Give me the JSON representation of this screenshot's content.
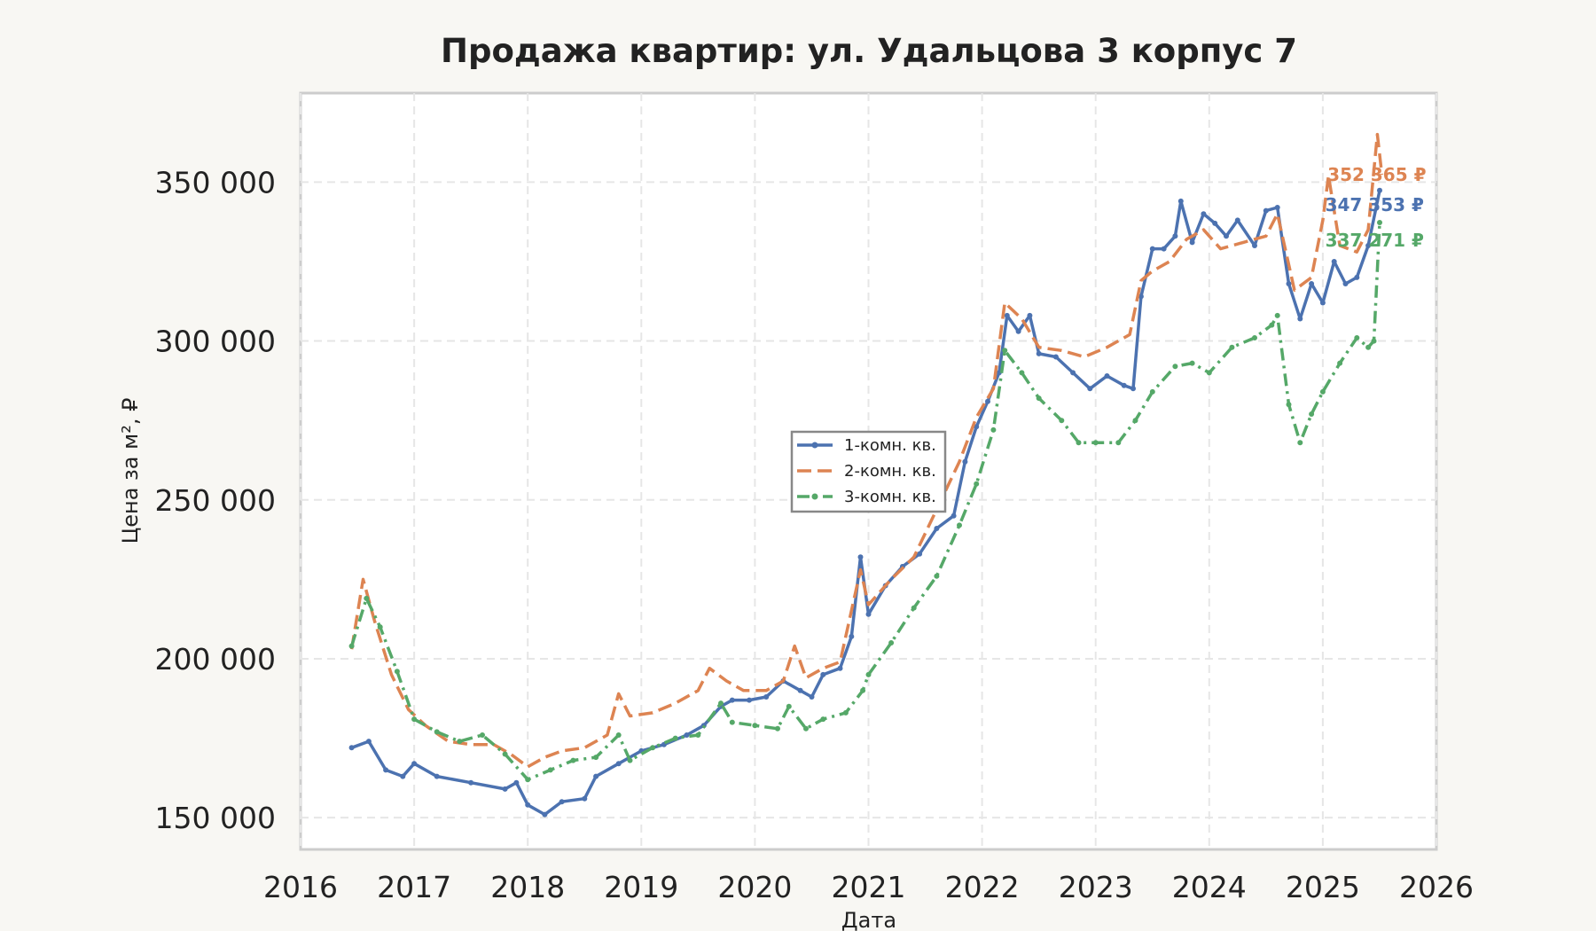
{
  "chart_data": {
    "type": "line",
    "title": "Продажа квартир: ул. Удальцова 3 корпус 7",
    "xlabel": "Дата",
    "ylabel": "Цена за м², ₽",
    "xlim": [
      2016,
      2026
    ],
    "ylim": [
      140000,
      378000
    ],
    "x_ticks": [
      "2016",
      "2017",
      "2018",
      "2019",
      "2020",
      "2021",
      "2022",
      "2023",
      "2024",
      "2025",
      "2026"
    ],
    "y_ticks": [
      {
        "value": 150000,
        "label": "150 000"
      },
      {
        "value": 200000,
        "label": "200 000"
      },
      {
        "value": 250000,
        "label": "250 000"
      },
      {
        "value": 300000,
        "label": "300 000"
      },
      {
        "value": 350000,
        "label": "350 000"
      }
    ],
    "grid": true,
    "legend_position": "center",
    "series": [
      {
        "name": "1-комн. кв.",
        "color": "#4c72b0",
        "line_style": "solid",
        "marker": "x",
        "end_label": "347 353 ₽",
        "points": [
          [
            2016.45,
            172000
          ],
          [
            2016.6,
            174000
          ],
          [
            2016.75,
            165000
          ],
          [
            2016.9,
            163000
          ],
          [
            2017.0,
            167000
          ],
          [
            2017.2,
            163000
          ],
          [
            2017.5,
            161000
          ],
          [
            2017.8,
            159000
          ],
          [
            2017.9,
            161000
          ],
          [
            2018.0,
            154000
          ],
          [
            2018.15,
            151000
          ],
          [
            2018.3,
            155000
          ],
          [
            2018.5,
            156000
          ],
          [
            2018.6,
            163000
          ],
          [
            2018.8,
            167000
          ],
          [
            2019.0,
            171000
          ],
          [
            2019.2,
            173000
          ],
          [
            2019.4,
            176000
          ],
          [
            2019.55,
            179000
          ],
          [
            2019.7,
            185000
          ],
          [
            2019.8,
            187000
          ],
          [
            2019.95,
            187000
          ],
          [
            2020.1,
            188000
          ],
          [
            2020.25,
            193000
          ],
          [
            2020.4,
            190000
          ],
          [
            2020.5,
            188000
          ],
          [
            2020.6,
            195000
          ],
          [
            2020.75,
            197000
          ],
          [
            2020.85,
            207000
          ],
          [
            2020.93,
            232000
          ],
          [
            2021.0,
            214000
          ],
          [
            2021.15,
            223000
          ],
          [
            2021.3,
            229000
          ],
          [
            2021.45,
            233000
          ],
          [
            2021.6,
            241000
          ],
          [
            2021.75,
            245000
          ],
          [
            2021.85,
            262000
          ],
          [
            2021.95,
            273000
          ],
          [
            2022.05,
            281000
          ],
          [
            2022.15,
            290000
          ],
          [
            2022.22,
            308000
          ],
          [
            2022.32,
            303000
          ],
          [
            2022.42,
            308000
          ],
          [
            2022.5,
            296000
          ],
          [
            2022.65,
            295000
          ],
          [
            2022.8,
            290000
          ],
          [
            2022.95,
            285000
          ],
          [
            2023.1,
            289000
          ],
          [
            2023.25,
            286000
          ],
          [
            2023.33,
            285000
          ],
          [
            2023.4,
            314000
          ],
          [
            2023.5,
            329000
          ],
          [
            2023.6,
            329000
          ],
          [
            2023.7,
            333000
          ],
          [
            2023.75,
            344000
          ],
          [
            2023.85,
            331000
          ],
          [
            2023.95,
            340000
          ],
          [
            2024.05,
            337000
          ],
          [
            2024.15,
            333000
          ],
          [
            2024.25,
            338000
          ],
          [
            2024.4,
            330000
          ],
          [
            2024.5,
            341000
          ],
          [
            2024.6,
            342000
          ],
          [
            2024.7,
            318000
          ],
          [
            2024.8,
            307000
          ],
          [
            2024.9,
            318000
          ],
          [
            2025.0,
            312000
          ],
          [
            2025.1,
            325000
          ],
          [
            2025.2,
            318000
          ],
          [
            2025.3,
            320000
          ],
          [
            2025.4,
            330000
          ],
          [
            2025.5,
            347353
          ]
        ]
      },
      {
        "name": "2-комн. кв.",
        "color": "#dd8452",
        "line_style": "dashed",
        "marker": "none",
        "end_label": "352 365 ₽",
        "points": [
          [
            2016.45,
            203000
          ],
          [
            2016.55,
            225000
          ],
          [
            2016.65,
            212000
          ],
          [
            2016.8,
            195000
          ],
          [
            2016.95,
            184000
          ],
          [
            2017.1,
            179000
          ],
          [
            2017.3,
            174000
          ],
          [
            2017.5,
            173000
          ],
          [
            2017.7,
            173000
          ],
          [
            2017.85,
            170000
          ],
          [
            2018.0,
            166000
          ],
          [
            2018.15,
            169000
          ],
          [
            2018.3,
            171000
          ],
          [
            2018.5,
            172000
          ],
          [
            2018.7,
            176000
          ],
          [
            2018.8,
            189000
          ],
          [
            2018.9,
            182000
          ],
          [
            2019.1,
            183000
          ],
          [
            2019.3,
            186000
          ],
          [
            2019.5,
            190000
          ],
          [
            2019.6,
            197000
          ],
          [
            2019.75,
            193000
          ],
          [
            2019.9,
            190000
          ],
          [
            2020.1,
            190000
          ],
          [
            2020.25,
            193000
          ],
          [
            2020.35,
            204000
          ],
          [
            2020.45,
            194000
          ],
          [
            2020.6,
            197000
          ],
          [
            2020.75,
            199000
          ],
          [
            2020.93,
            228000
          ],
          [
            2021.0,
            217000
          ],
          [
            2021.2,
            225000
          ],
          [
            2021.4,
            232000
          ],
          [
            2021.6,
            247000
          ],
          [
            2021.8,
            262000
          ],
          [
            2021.95,
            276000
          ],
          [
            2022.1,
            285000
          ],
          [
            2022.2,
            312000
          ],
          [
            2022.35,
            307000
          ],
          [
            2022.5,
            298000
          ],
          [
            2022.7,
            297000
          ],
          [
            2022.9,
            295000
          ],
          [
            2023.1,
            298000
          ],
          [
            2023.3,
            302000
          ],
          [
            2023.4,
            319000
          ],
          [
            2023.5,
            322000
          ],
          [
            2023.65,
            325000
          ],
          [
            2023.8,
            332000
          ],
          [
            2023.95,
            335000
          ],
          [
            2024.1,
            329000
          ],
          [
            2024.3,
            331000
          ],
          [
            2024.5,
            333000
          ],
          [
            2024.6,
            340000
          ],
          [
            2024.75,
            316000
          ],
          [
            2024.9,
            320000
          ],
          [
            2025.0,
            338000
          ],
          [
            2025.05,
            352000
          ],
          [
            2025.15,
            330000
          ],
          [
            2025.3,
            328000
          ],
          [
            2025.4,
            335000
          ],
          [
            2025.48,
            365000
          ],
          [
            2025.52,
            352365
          ]
        ]
      },
      {
        "name": "3-комн. кв.",
        "color": "#55a868",
        "line_style": "dashdot",
        "marker": "triangle",
        "end_label": "337 271 ₽",
        "points": [
          [
            2016.45,
            204000
          ],
          [
            2016.58,
            219000
          ],
          [
            2016.7,
            210000
          ],
          [
            2016.85,
            196000
          ],
          [
            2017.0,
            181000
          ],
          [
            2017.2,
            177000
          ],
          [
            2017.4,
            174000
          ],
          [
            2017.6,
            176000
          ],
          [
            2017.8,
            170000
          ],
          [
            2018.0,
            162000
          ],
          [
            2018.2,
            165000
          ],
          [
            2018.4,
            168000
          ],
          [
            2018.6,
            169000
          ],
          [
            2018.8,
            176000
          ],
          [
            2018.9,
            168000
          ],
          [
            2019.1,
            172000
          ],
          [
            2019.3,
            175000
          ],
          [
            2019.5,
            176000
          ],
          [
            2019.7,
            186000
          ],
          [
            2019.8,
            180000
          ],
          [
            2020.0,
            179000
          ],
          [
            2020.2,
            178000
          ],
          [
            2020.3,
            185000
          ],
          [
            2020.45,
            178000
          ],
          [
            2020.6,
            181000
          ],
          [
            2020.8,
            183000
          ],
          [
            2020.95,
            190000
          ],
          [
            2021.0,
            195000
          ],
          [
            2021.2,
            205000
          ],
          [
            2021.4,
            216000
          ],
          [
            2021.6,
            226000
          ],
          [
            2021.8,
            242000
          ],
          [
            2021.95,
            255000
          ],
          [
            2022.1,
            272000
          ],
          [
            2022.2,
            297000
          ],
          [
            2022.35,
            290000
          ],
          [
            2022.5,
            282000
          ],
          [
            2022.7,
            275000
          ],
          [
            2022.85,
            268000
          ],
          [
            2023.0,
            268000
          ],
          [
            2023.2,
            268000
          ],
          [
            2023.35,
            275000
          ],
          [
            2023.5,
            284000
          ],
          [
            2023.7,
            292000
          ],
          [
            2023.85,
            293000
          ],
          [
            2024.0,
            290000
          ],
          [
            2024.2,
            298000
          ],
          [
            2024.4,
            301000
          ],
          [
            2024.55,
            305000
          ],
          [
            2024.6,
            308000
          ],
          [
            2024.7,
            280000
          ],
          [
            2024.8,
            268000
          ],
          [
            2024.9,
            277000
          ],
          [
            2025.0,
            284000
          ],
          [
            2025.15,
            293000
          ],
          [
            2025.3,
            301000
          ],
          [
            2025.4,
            298000
          ],
          [
            2025.45,
            300000
          ],
          [
            2025.5,
            337271
          ]
        ]
      }
    ]
  }
}
